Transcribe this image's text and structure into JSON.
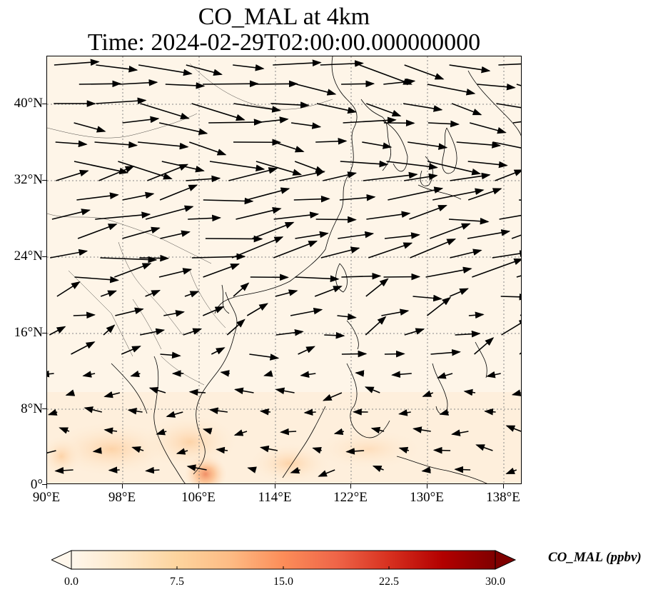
{
  "title": {
    "line1": "CO_MAL at 4km",
    "line2": "Time: 2024-02-29T02:00:00.000000000"
  },
  "map": {
    "extent": {
      "lon_min": 90,
      "lon_max": 140,
      "lat_min": 0,
      "lat_max": 45
    },
    "lat_ticks": [
      {
        "value": 40,
        "label": "40°N"
      },
      {
        "value": 32,
        "label": "32°N"
      },
      {
        "value": 24,
        "label": "24°N"
      },
      {
        "value": 16,
        "label": "16°N"
      },
      {
        "value": 8,
        "label": "8°N"
      },
      {
        "value": 0,
        "label": "0°"
      }
    ],
    "lon_ticks": [
      {
        "value": 90,
        "label": "90°E"
      },
      {
        "value": 98,
        "label": "98°E"
      },
      {
        "value": 106,
        "label": "106°E"
      },
      {
        "value": 114,
        "label": "114°E"
      },
      {
        "value": 122,
        "label": "122°E"
      },
      {
        "value": 130,
        "label": "130°E"
      },
      {
        "value": 138,
        "label": "138°E"
      }
    ],
    "background_color": "#fef5e8",
    "gridline_color": "#888888"
  },
  "colorbar": {
    "label": "CO_MAL (ppbv)",
    "ticks": [
      "0.0",
      "7.5",
      "15.0",
      "22.5",
      "30.0"
    ],
    "min": 0,
    "max": 30,
    "colormap": "OrRd",
    "colors": [
      "#fff7ec",
      "#fee8c8",
      "#fdd49e",
      "#fdbb84",
      "#fc8d59",
      "#ef6548",
      "#d7301f",
      "#b30000",
      "#7f0000"
    ]
  }
}
